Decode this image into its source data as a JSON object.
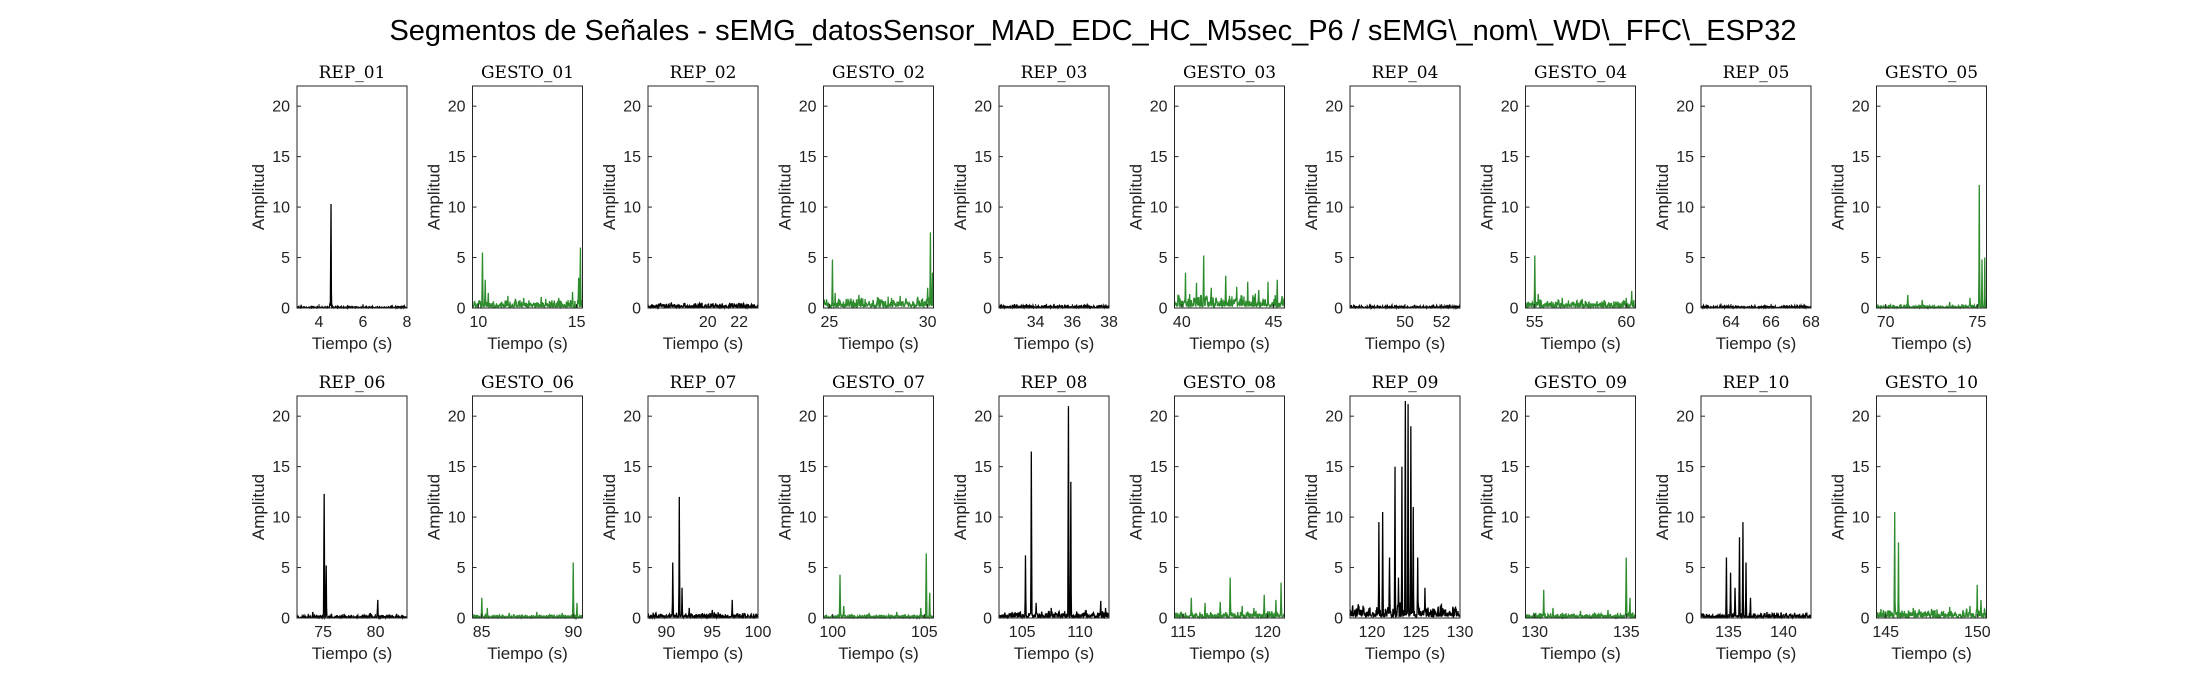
{
  "chart_data": {
    "type": "line",
    "title": "Segmentos de Señales - sEMG_datosSensor_MAD_EDC_HC_M5sec_P6 / sEMG\\_nom\\_WD\\_FFC\\_ESP32",
    "colors": {
      "rep": "#000000",
      "gesto": "#2e8b2e",
      "axes": "#262626"
    },
    "ylim": [
      0,
      22
    ],
    "yticks": [
      0,
      5,
      10,
      15,
      20
    ],
    "grid": false,
    "panels": [
      {
        "title": "REP_01",
        "kind": "rep",
        "xlim": [
          3,
          8
        ],
        "xticks": [
          4,
          6,
          8
        ],
        "xlabel": "Tiempo (s)",
        "ylabel": "Amplitud",
        "baseline": 0.1,
        "spikes": [
          [
            4.55,
            10.3
          ],
          [
            4.5,
            0.5
          ],
          [
            6.0,
            0.3
          ],
          [
            7.3,
            0.25
          ]
        ]
      },
      {
        "title": "GESTO_01",
        "kind": "gesto",
        "xlim": [
          9.7,
          15.3
        ],
        "xticks": [
          10,
          15
        ],
        "xlabel": "Tiempo (s)",
        "ylabel": "Amplitud",
        "baseline": 0.5,
        "spikes": [
          [
            10.2,
            5.5
          ],
          [
            10.35,
            2.8
          ],
          [
            10.5,
            1.5
          ],
          [
            11.5,
            1.2
          ],
          [
            12.3,
            1.0
          ],
          [
            13.2,
            1.1
          ],
          [
            14.1,
            1.0
          ],
          [
            14.8,
            1.6
          ],
          [
            15.2,
            6.0
          ],
          [
            15.1,
            3.0
          ]
        ]
      },
      {
        "title": "REP_02",
        "kind": "rep",
        "xlim": [
          16.2,
          23.2
        ],
        "xticks": [
          20,
          22
        ],
        "xlabel": "Tiempo (s)",
        "ylabel": "Amplitud",
        "baseline": 0.3,
        "spikes": [
          [
            17.0,
            0.5
          ],
          [
            18.5,
            0.5
          ],
          [
            20.5,
            0.4
          ],
          [
            22.0,
            0.5
          ]
        ]
      },
      {
        "title": "GESTO_02",
        "kind": "gesto",
        "xlim": [
          24.7,
          30.3
        ],
        "xticks": [
          25,
          30
        ],
        "xlabel": "Tiempo (s)",
        "ylabel": "Amplitud",
        "baseline": 0.6,
        "spikes": [
          [
            25.15,
            4.8
          ],
          [
            25.3,
            1.5
          ],
          [
            26.5,
            1.3
          ],
          [
            27.5,
            1.0
          ],
          [
            28.6,
            1.2
          ],
          [
            29.5,
            1.1
          ],
          [
            30.0,
            2.0
          ],
          [
            30.15,
            7.5
          ],
          [
            30.25,
            3.5
          ]
        ]
      },
      {
        "title": "REP_03",
        "kind": "rep",
        "xlim": [
          32,
          38
        ],
        "xticks": [
          34,
          36,
          38
        ],
        "xlabel": "Tiempo (s)",
        "ylabel": "Amplitud",
        "baseline": 0.2,
        "spikes": [
          [
            33.5,
            0.4
          ],
          [
            35.0,
            0.4
          ],
          [
            36.8,
            0.3
          ]
        ]
      },
      {
        "title": "GESTO_03",
        "kind": "gesto",
        "xlim": [
          39.6,
          45.6
        ],
        "xticks": [
          40,
          45
        ],
        "xlabel": "Tiempo (s)",
        "ylabel": "Amplitud",
        "baseline": 0.8,
        "spikes": [
          [
            40.2,
            3.5
          ],
          [
            40.8,
            2.5
          ],
          [
            41.2,
            5.2
          ],
          [
            41.6,
            2.0
          ],
          [
            42.4,
            3.2
          ],
          [
            43.0,
            2.1
          ],
          [
            43.6,
            2.6
          ],
          [
            44.2,
            1.8
          ],
          [
            44.7,
            2.6
          ],
          [
            45.2,
            2.8
          ]
        ]
      },
      {
        "title": "REP_04",
        "kind": "rep",
        "xlim": [
          47,
          53
        ],
        "xticks": [
          50,
          52
        ],
        "xlabel": "Tiempo (s)",
        "ylabel": "Amplitud",
        "baseline": 0.15,
        "spikes": [
          [
            48.5,
            0.3
          ],
          [
            50.5,
            0.3
          ],
          [
            52.0,
            0.25
          ]
        ]
      },
      {
        "title": "GESTO_04",
        "kind": "gesto",
        "xlim": [
          54.5,
          60.5
        ],
        "xticks": [
          55,
          60
        ],
        "xlabel": "Tiempo (s)",
        "ylabel": "Amplitud",
        "baseline": 0.5,
        "spikes": [
          [
            55.0,
            5.2
          ],
          [
            55.2,
            1.4
          ],
          [
            56.5,
            1.0
          ],
          [
            57.6,
            0.9
          ],
          [
            58.8,
            0.8
          ],
          [
            60.0,
            1.0
          ],
          [
            60.3,
            1.7
          ]
        ]
      },
      {
        "title": "REP_05",
        "kind": "rep",
        "xlim": [
          62.5,
          68
        ],
        "xticks": [
          64,
          66,
          68
        ],
        "xlabel": "Tiempo (s)",
        "ylabel": "Amplitud",
        "baseline": 0.15,
        "spikes": [
          [
            63.5,
            0.3
          ],
          [
            66.0,
            0.25
          ],
          [
            67.5,
            0.25
          ]
        ]
      },
      {
        "title": "GESTO_05",
        "kind": "gesto",
        "xlim": [
          69.5,
          75.5
        ],
        "xticks": [
          70,
          75
        ],
        "xlabel": "Tiempo (s)",
        "ylabel": "Amplitud",
        "baseline": 0.2,
        "spikes": [
          [
            71.2,
            1.3
          ],
          [
            72.0,
            0.8
          ],
          [
            73.5,
            0.6
          ],
          [
            74.6,
            1.0
          ],
          [
            75.1,
            12.2
          ],
          [
            75.25,
            4.8
          ],
          [
            75.4,
            5.0
          ]
        ]
      },
      {
        "title": "REP_06",
        "kind": "rep",
        "xlim": [
          72.5,
          83
        ],
        "xticks": [
          75,
          80
        ],
        "xlabel": "Tiempo (s)",
        "ylabel": "Amplitud",
        "baseline": 0.2,
        "spikes": [
          [
            75.1,
            12.3
          ],
          [
            75.3,
            5.2
          ],
          [
            74.0,
            0.6
          ],
          [
            77.0,
            0.4
          ],
          [
            79.5,
            0.5
          ],
          [
            80.2,
            1.8
          ],
          [
            82.0,
            0.4
          ]
        ]
      },
      {
        "title": "GESTO_06",
        "kind": "gesto",
        "xlim": [
          84.5,
          90.5
        ],
        "xticks": [
          85,
          90
        ],
        "xlabel": "Tiempo (s)",
        "ylabel": "Amplitud",
        "baseline": 0.2,
        "spikes": [
          [
            85.0,
            2.0
          ],
          [
            85.3,
            1.0
          ],
          [
            86.5,
            0.5
          ],
          [
            88.0,
            0.6
          ],
          [
            89.4,
            0.5
          ],
          [
            90.0,
            5.5
          ],
          [
            90.2,
            1.5
          ]
        ]
      },
      {
        "title": "REP_07",
        "kind": "rep",
        "xlim": [
          88,
          100
        ],
        "xticks": [
          90,
          95,
          100
        ],
        "xlabel": "Tiempo (s)",
        "ylabel": "Amplitud",
        "baseline": 0.3,
        "spikes": [
          [
            90.7,
            5.5
          ],
          [
            91.4,
            12.0
          ],
          [
            91.7,
            3.0
          ],
          [
            92.5,
            1.0
          ],
          [
            95.0,
            0.8
          ],
          [
            97.2,
            1.8
          ],
          [
            98.5,
            0.5
          ]
        ]
      },
      {
        "title": "GESTO_07",
        "kind": "gesto",
        "xlim": [
          99.5,
          105.5
        ],
        "xticks": [
          100,
          105
        ],
        "xlabel": "Tiempo (s)",
        "ylabel": "Amplitud",
        "baseline": 0.2,
        "spikes": [
          [
            100.4,
            4.3
          ],
          [
            100.6,
            1.2
          ],
          [
            102.0,
            0.5
          ],
          [
            103.5,
            0.6
          ],
          [
            104.8,
            1.0
          ],
          [
            105.1,
            6.4
          ],
          [
            105.3,
            2.5
          ]
        ]
      },
      {
        "title": "REP_08",
        "kind": "rep",
        "xlim": [
          103,
          112.5
        ],
        "xticks": [
          105,
          110
        ],
        "xlabel": "Tiempo (s)",
        "ylabel": "Amplitud",
        "baseline": 0.4,
        "spikes": [
          [
            105.3,
            6.2
          ],
          [
            105.8,
            16.5
          ],
          [
            106.2,
            1.5
          ],
          [
            107.5,
            1.0
          ],
          [
            109.0,
            21.0
          ],
          [
            109.2,
            13.5
          ],
          [
            110.5,
            0.8
          ],
          [
            111.8,
            1.7
          ],
          [
            112.2,
            1.0
          ]
        ]
      },
      {
        "title": "GESTO_08",
        "kind": "gesto",
        "xlim": [
          114.5,
          121
        ],
        "xticks": [
          115,
          120
        ],
        "xlabel": "Tiempo (s)",
        "ylabel": "Amplitud",
        "baseline": 0.4,
        "spikes": [
          [
            115.5,
            2.0
          ],
          [
            116.3,
            1.5
          ],
          [
            117.2,
            1.6
          ],
          [
            117.8,
            4.0
          ],
          [
            118.5,
            1.2
          ],
          [
            119.2,
            1.0
          ],
          [
            119.8,
            2.3
          ],
          [
            120.5,
            1.8
          ],
          [
            120.8,
            3.5
          ]
        ]
      },
      {
        "title": "REP_09",
        "kind": "rep",
        "xlim": [
          117.5,
          130
        ],
        "xticks": [
          120,
          125,
          130
        ],
        "xlabel": "Tiempo (s)",
        "ylabel": "Amplitud",
        "baseline": 0.8,
        "spikes": [
          [
            118.5,
            1.2
          ],
          [
            120.8,
            9.5
          ],
          [
            121.2,
            10.5
          ],
          [
            122.0,
            6.0
          ],
          [
            122.6,
            15.0
          ],
          [
            123.0,
            4.0
          ],
          [
            123.4,
            15.0
          ],
          [
            123.8,
            21.5
          ],
          [
            124.1,
            21.2
          ],
          [
            124.4,
            19.0
          ],
          [
            124.7,
            11.0
          ],
          [
            125.2,
            6.0
          ],
          [
            126.0,
            3.0
          ],
          [
            127.5,
            1.0
          ]
        ]
      },
      {
        "title": "GESTO_09",
        "kind": "gesto",
        "xlim": [
          129.5,
          135.5
        ],
        "xticks": [
          130,
          135
        ],
        "xlabel": "Tiempo (s)",
        "ylabel": "Amplitud",
        "baseline": 0.3,
        "spikes": [
          [
            130.5,
            2.8
          ],
          [
            131.0,
            1.0
          ],
          [
            132.5,
            0.7
          ],
          [
            134.0,
            0.8
          ],
          [
            135.0,
            6.0
          ],
          [
            135.2,
            2.0
          ]
        ]
      },
      {
        "title": "REP_10",
        "kind": "rep",
        "xlim": [
          132.5,
          142.5
        ],
        "xticks": [
          135,
          140
        ],
        "xlabel": "Tiempo (s)",
        "ylabel": "Amplitud",
        "baseline": 0.3,
        "spikes": [
          [
            134.8,
            6.0
          ],
          [
            135.2,
            4.5
          ],
          [
            135.6,
            3.0
          ],
          [
            136.0,
            8.0
          ],
          [
            136.3,
            9.5
          ],
          [
            136.6,
            5.5
          ],
          [
            137.0,
            2.0
          ],
          [
            138.5,
            0.6
          ],
          [
            141.0,
            0.5
          ]
        ]
      },
      {
        "title": "GESTO_10",
        "kind": "gesto",
        "xlim": [
          144.5,
          150.5
        ],
        "xticks": [
          145,
          150
        ],
        "xlabel": "Tiempo (s)",
        "ylabel": "Amplitud",
        "baseline": 0.5,
        "spikes": [
          [
            145.5,
            10.5
          ],
          [
            145.7,
            7.5
          ],
          [
            146.5,
            1.0
          ],
          [
            147.5,
            0.9
          ],
          [
            148.5,
            1.1
          ],
          [
            149.6,
            1.2
          ],
          [
            150.0,
            3.3
          ],
          [
            150.2,
            1.8
          ]
        ]
      }
    ]
  }
}
